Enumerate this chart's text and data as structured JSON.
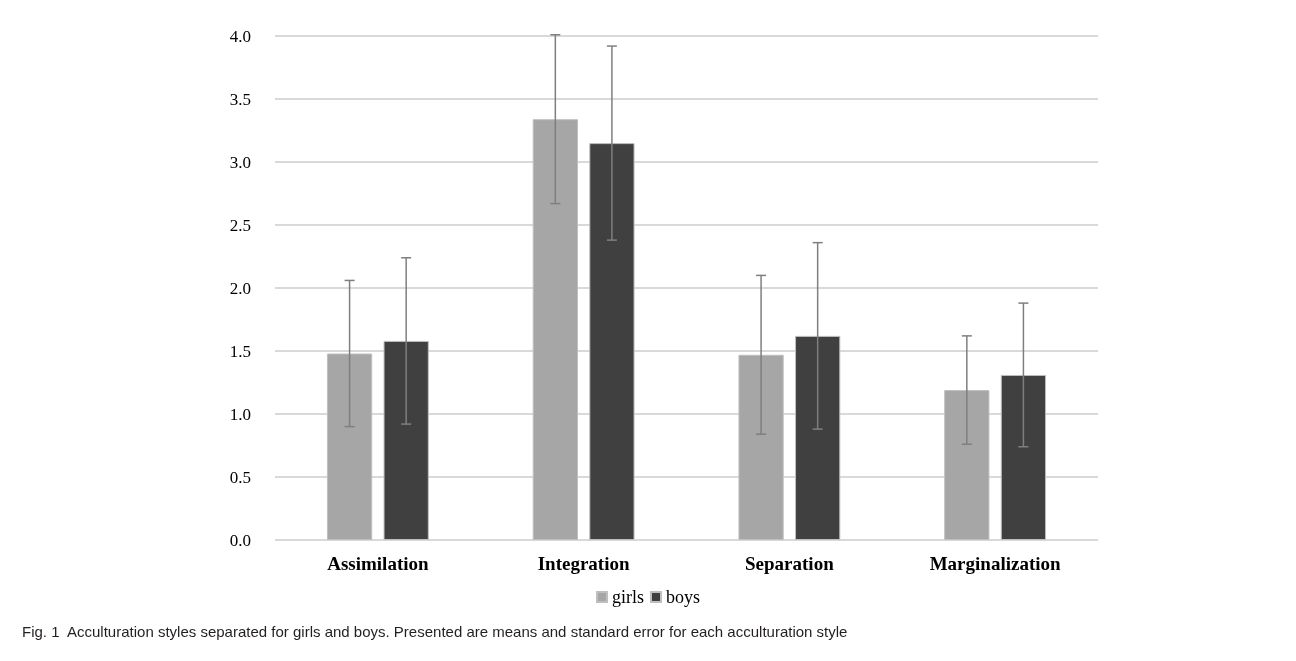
{
  "chart_data": {
    "type": "bar",
    "categories": [
      "Assimilation",
      "Integration",
      "Separation",
      "Marginalization"
    ],
    "series": [
      {
        "name": "girls",
        "color": "#a6a6a6",
        "values": [
          1.48,
          3.34,
          1.47,
          1.19
        ],
        "errors": [
          0.58,
          0.67,
          0.63,
          0.43
        ]
      },
      {
        "name": "boys",
        "color": "#404040",
        "values": [
          1.58,
          3.15,
          1.62,
          1.31
        ],
        "errors": [
          0.66,
          0.77,
          0.74,
          0.57
        ]
      }
    ],
    "ylim": [
      0,
      4
    ],
    "yticks": [
      {
        "value": 0,
        "label": "0.0"
      },
      0.5,
      {
        "value": 1,
        "label": "1.0"
      },
      1.5,
      {
        "value": 2,
        "label": "2.0"
      },
      2.5,
      {
        "value": 3,
        "label": "3.0"
      },
      3.5,
      {
        "value": 4,
        "label": "4.0"
      }
    ],
    "grid": "y",
    "legend": "bottom",
    "annotations": [
      "Fig. 1  Acculturation styles separated for girls and boys. Presented are means and standard error for each acculturation style"
    ]
  }
}
